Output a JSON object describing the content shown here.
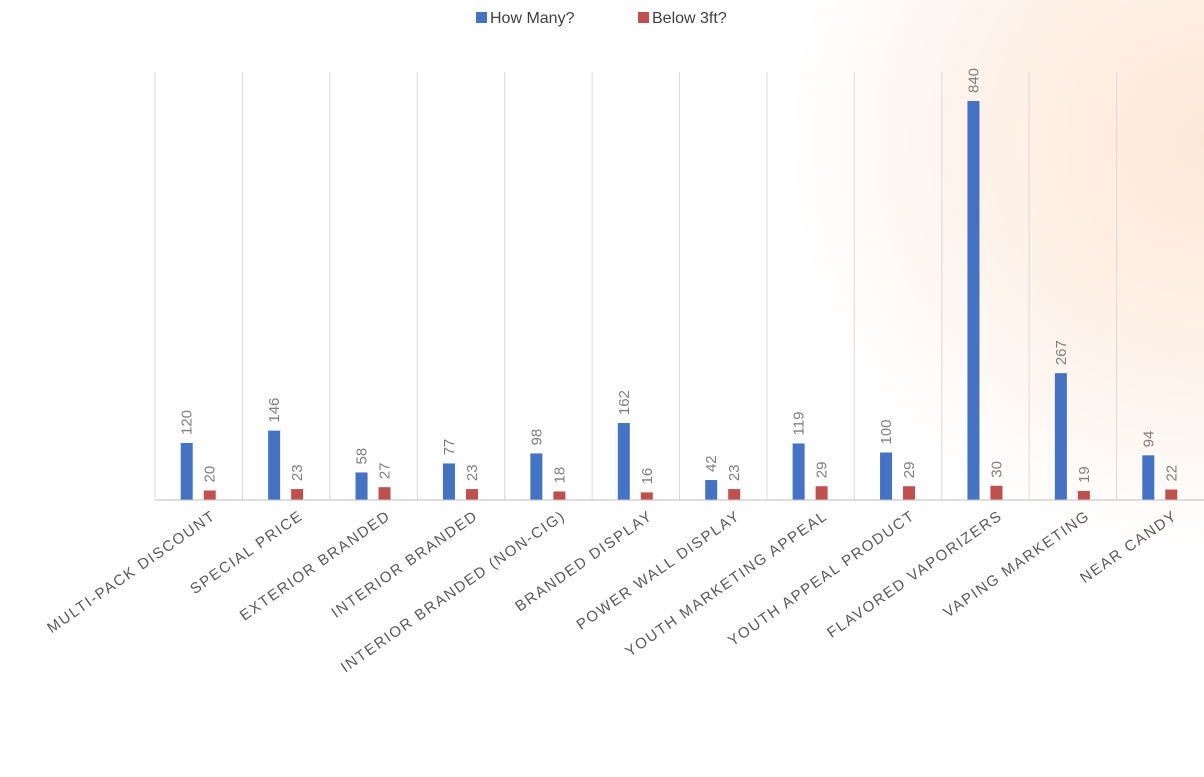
{
  "chart_data": {
    "type": "bar",
    "title": "",
    "xlabel": "",
    "ylabel": "",
    "ylim": [
      0,
      900
    ],
    "grid": "vertical category separators",
    "legend": "top-center",
    "categories": [
      "MULTI-PACK DISCOUNT",
      "SPECIAL PRICE",
      "EXTERIOR BRANDED",
      "INTERIOR BRANDED",
      "INTERIOR BRANDED (NON-CIG)",
      "BRANDED DISPLAY",
      "POWER WALL DISPLAY",
      "YOUTH MARKETING APPEAL",
      "YOUTH APPEAL PRODUCT",
      "FLAVORED VAPORIZERS",
      "VAPING MARKETING",
      "NEAR CANDY"
    ],
    "series": [
      {
        "name": "How Many?",
        "color": "#4472c4",
        "values": [
          120,
          146,
          58,
          77,
          98,
          162,
          42,
          119,
          100,
          840,
          267,
          94
        ]
      },
      {
        "name": "Below 3ft?",
        "color": "#c0504d",
        "values": [
          20,
          23,
          27,
          23,
          18,
          16,
          23,
          29,
          29,
          30,
          19,
          22
        ]
      }
    ]
  }
}
